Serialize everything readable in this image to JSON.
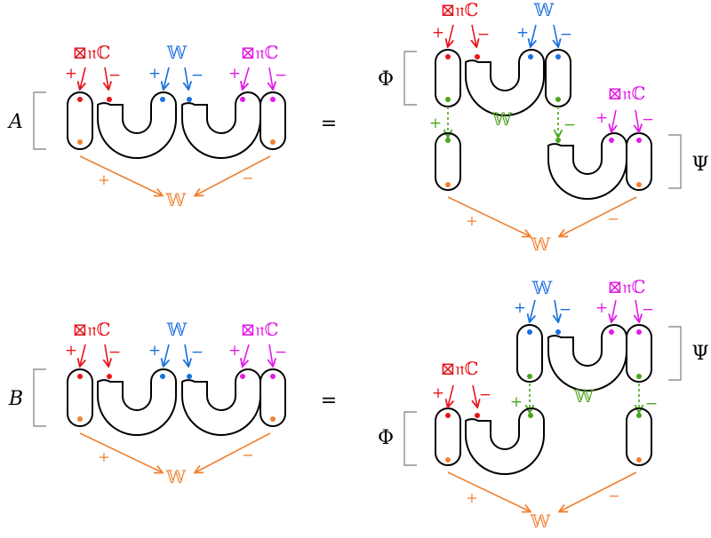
{
  "colors": {
    "red": "#e8141c",
    "blue": "#1a6fe0",
    "magenta": "#e31ae8",
    "green": "#4aa51c",
    "orange": "#f08030",
    "gray": "#909090",
    "black": "#000000"
  },
  "symbols": {
    "boxn_c": "⊠𝔫ℂ",
    "w": "𝕎",
    "plus": "+",
    "minus": "−",
    "equals": "=",
    "phi": "Φ",
    "psi": "Ψ"
  },
  "equations": [
    {
      "lhs_label": "A"
    },
    {
      "lhs_label": "B"
    }
  ]
}
